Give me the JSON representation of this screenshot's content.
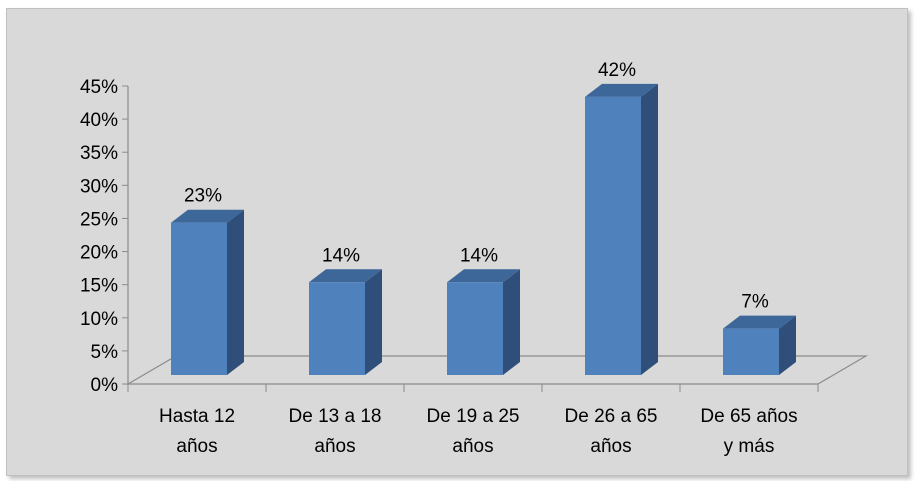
{
  "chart_data": {
    "type": "bar",
    "style": "3d-clustered-column",
    "categories": [
      [
        "Hasta 12",
        "años"
      ],
      [
        "De 13 a 18",
        "años"
      ],
      [
        "De 19 a 25",
        "años"
      ],
      [
        "De 26 a 65",
        "años"
      ],
      [
        "De 65 años",
        "y más"
      ]
    ],
    "values": [
      23,
      14,
      14,
      42,
      7
    ],
    "data_labels": [
      "23%",
      "14%",
      "14%",
      "42%",
      "7%"
    ],
    "y_ticks": [
      "0%",
      "5%",
      "10%",
      "15%",
      "20%",
      "25%",
      "30%",
      "35%",
      "40%",
      "45%"
    ],
    "ylim": [
      0,
      45
    ],
    "grid": false,
    "legend": "none",
    "colors": {
      "bar_front": "#4f81bd",
      "bar_side": "#2f4f7a",
      "bar_top": "#3d6699",
      "plot_background": "#d9d9d9",
      "axis": "#8c8c8c"
    }
  }
}
